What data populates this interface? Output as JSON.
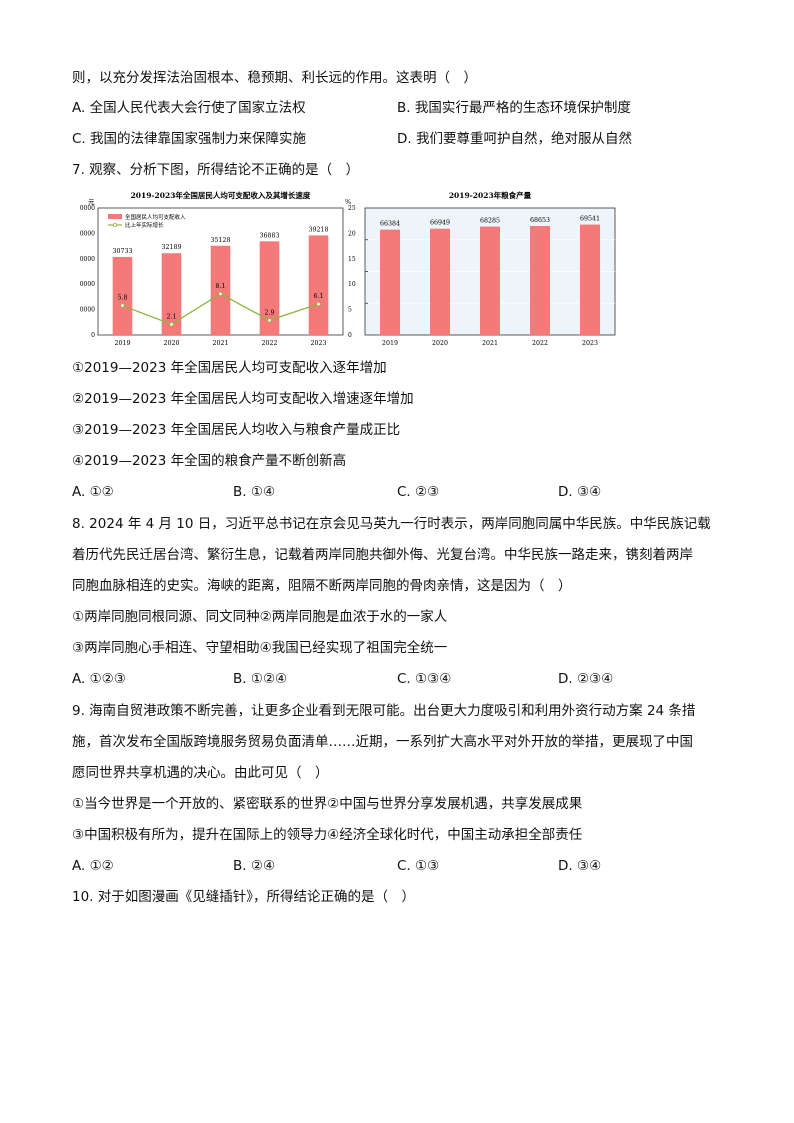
{
  "q6": {
    "tail": "则，以充分发挥法治固根本、稳预期、利长远的作用。这表明（　）",
    "options": [
      "A. 全国人民代表大会行使了国家立法权",
      "B. 我国实行最严格的生态环境保护制度",
      "C. 我国的法律靠国家强制力来保障实施",
      "D. 我们要尊重呵护自然，绝对服从自然"
    ]
  },
  "q7": {
    "stem": "7. 观察、分析下图，所得结论不正确的是（　）",
    "statements": [
      "①2019—2023 年全国居民人均可支配收入逐年增加",
      "②2019—2023 年全国居民人均可支配收入增速逐年增加",
      "③2019—2023 年全国居民人均收入与粮食产量成正比",
      "④2019—2023 年全国的粮食产量不断创新高"
    ],
    "options": [
      "A. ①②",
      "B. ①④",
      "C. ②③",
      "D. ③④"
    ]
  },
  "q8": {
    "stem": [
      "8. 2024 年 4 月 10 日，习近平总书记在京会见马英九一行时表示，两岸同胞同属中华民族。中华民族记载",
      "着历代先民迁居台湾、繁衍生息，记载着两岸同胞共御外侮、光复台湾。中华民族一路走来，镌刻着两岸",
      "同胞血脉相连的史实。海峡的距离，阻隔不断两岸同胞的骨肉亲情，这是因为（　）"
    ],
    "statements": [
      "①两岸同胞同根同源、同文同种②两岸同胞是血浓于水的一家人",
      "③两岸同胞心手相连、守望相助④我国已经实现了祖国完全统一"
    ],
    "options": [
      "A. ①②③",
      "B. ①②④",
      "C. ①③④",
      "D. ②③④"
    ]
  },
  "q9": {
    "stem": [
      "9. 海南自贸港政策不断完善，让更多企业看到无限可能。出台更大力度吸引和利用外资行动方案 24 条措",
      "施，首次发布全国版跨境服务贸易负面清单……近期，一系列扩大高水平对外开放的举措，更展现了中国",
      "愿同世界共享机遇的决心。由此可见（　）"
    ],
    "statements": [
      "①当今世界是一个开放的、紧密联系的世界②中国与世界分享发展机遇，共享发展成果",
      "③中国积极有所为，提升在国际上的领导力④经济全球化时代，中国主动承担全部责任"
    ],
    "options": [
      "A. ①②",
      "B. ②④",
      "C. ①③",
      "D. ③④"
    ]
  },
  "q10": {
    "stem": "10. 对于如图漫画《见缝插针》，所得结论正确的是（　）"
  },
  "chart_data": [
    {
      "type": "bar+line",
      "title": "2019-2023年全国居民人均可支配收入及其增长速度",
      "categories": [
        "2019",
        "2020",
        "2021",
        "2022",
        "2023"
      ],
      "left_unit": "元",
      "right_unit": "%",
      "ylim": [
        0,
        50000
      ],
      "y_ticks": [
        "0",
        "10000",
        "20000",
        "30000",
        "40000",
        "50000"
      ],
      "y2lim": [
        0,
        25
      ],
      "y2_ticks": [
        "0",
        "5",
        "10",
        "15",
        "20",
        "25"
      ],
      "legend_position": "top-left",
      "series": [
        {
          "name": "全国居民人均可支配收入",
          "type": "bar",
          "values": [
            30733,
            32189,
            35128,
            36883,
            39218
          ],
          "labels": [
            "30733",
            "32189",
            "35128",
            "36883",
            "39218"
          ],
          "color": "#f47a7a"
        },
        {
          "name": "比上年实际增长",
          "type": "line",
          "axis": "right",
          "values": [
            5.8,
            2.1,
            8.1,
            2.9,
            6.1
          ],
          "labels": [
            "5.8",
            "2.1",
            "8.1",
            "2.9",
            "6.1"
          ],
          "color": "#8cb43c"
        }
      ]
    },
    {
      "type": "bar",
      "title": "2019-2023年粮食产量",
      "categories": [
        "2019",
        "2020",
        "2021",
        "2022",
        "2023"
      ],
      "values": [
        66384,
        66949,
        68285,
        68653,
        69541
      ],
      "labels": [
        "66384",
        "66949",
        "68285",
        "68653",
        "69541"
      ],
      "ylim": [
        0,
        80000
      ],
      "grid": true,
      "color": "#f47a7a",
      "background": "#eef5fa"
    }
  ]
}
